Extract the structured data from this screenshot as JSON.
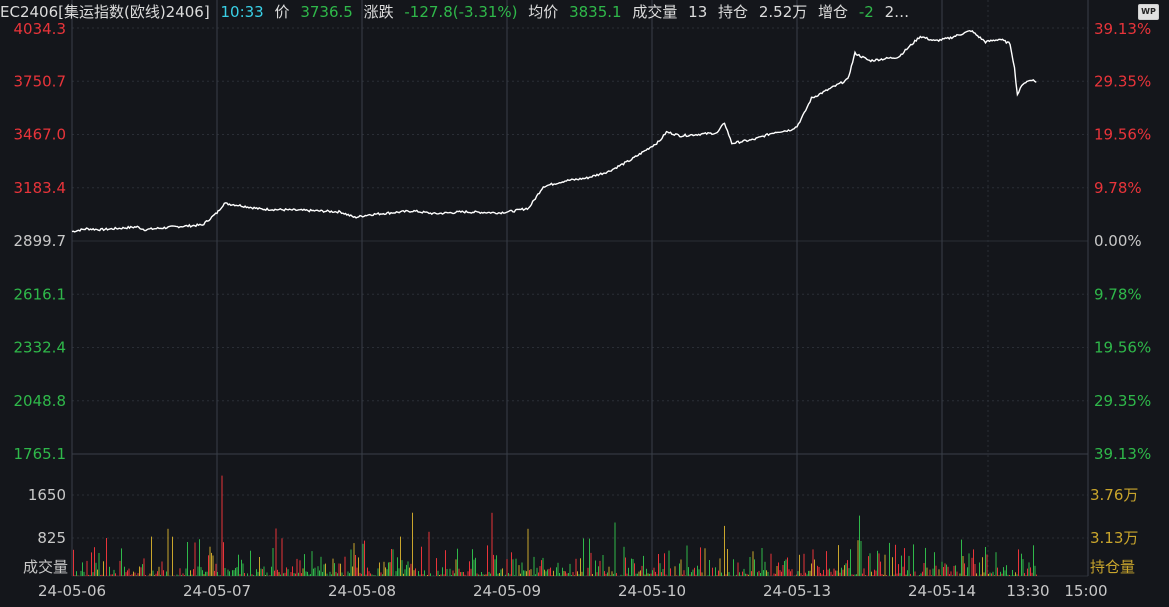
{
  "header": {
    "symbol": "EC2406[集运指数(欧线)2406]",
    "time": "10:33",
    "price_label": "价",
    "price_value": "3736.5",
    "change_label": "涨跌",
    "change_value": "-127.8(-3.31%)",
    "avg_label": "均价",
    "avg_value": "3835.1",
    "volume_label": "成交量",
    "volume_value": "13",
    "oi_label": "持仓",
    "oi_value": "2.52万",
    "oi_change_label": "增仓",
    "oi_change_value": "-2",
    "overflow_text": "2…",
    "wp_badge": "WP"
  },
  "colors": {
    "background": "#14161b",
    "grid": "#2a2e36",
    "price_line": "#ffffff",
    "up_red": "#e8343a",
    "down_green": "#2fb84a",
    "volume_yellow": "#c9a52c",
    "axis_text": "#c8c8c8"
  },
  "chart_data": [
    {
      "type": "line",
      "series": [
        {
          "values_described_as": "intraday price path"
        }
      ],
      "y_left_ticks": [
        "4034.3",
        "3750.7",
        "3467.0",
        "3183.4",
        "2899.7",
        "2616.1",
        "2332.4",
        "2048.8",
        "1765.1"
      ],
      "y_right_ticks": [
        "39.13%",
        "29.35%",
        "19.56%",
        "9.78%",
        "0.00%",
        "9.78%",
        "19.56%",
        "29.35%",
        "39.13%"
      ],
      "ylim": [
        1765.1,
        4034.3
      ],
      "reference_price": 2899.7,
      "x_ticks": [
        "24-05-06",
        "24-05-07",
        "24-05-08",
        "24-05-09",
        "24-05-10",
        "24-05-13",
        "24-05-14",
        "13:30",
        "15:00"
      ],
      "path": [
        [
          0,
          2950
        ],
        [
          0.1,
          2965
        ],
        [
          0.2,
          2960
        ],
        [
          0.45,
          2975
        ],
        [
          0.5,
          2960
        ],
        [
          0.7,
          2975
        ],
        [
          0.9,
          2985
        ],
        [
          1.0,
          3050
        ],
        [
          1.05,
          3100
        ],
        [
          1.15,
          3090
        ],
        [
          1.3,
          3070
        ],
        [
          1.5,
          3065
        ],
        [
          1.7,
          3060
        ],
        [
          1.85,
          3055
        ],
        [
          1.95,
          3025
        ],
        [
          2.05,
          3040
        ],
        [
          2.2,
          3050
        ],
        [
          2.35,
          3060
        ],
        [
          2.5,
          3045
        ],
        [
          2.7,
          3055
        ],
        [
          2.95,
          3050
        ],
        [
          3.05,
          3060
        ],
        [
          3.15,
          3075
        ],
        [
          3.25,
          3190
        ],
        [
          3.4,
          3220
        ],
        [
          3.55,
          3235
        ],
        [
          3.7,
          3270
        ],
        [
          3.85,
          3330
        ],
        [
          3.95,
          3380
        ],
        [
          4.05,
          3430
        ],
        [
          4.1,
          3480
        ],
        [
          4.2,
          3460
        ],
        [
          4.35,
          3470
        ],
        [
          4.45,
          3475
        ],
        [
          4.5,
          3530
        ],
        [
          4.55,
          3420
        ],
        [
          4.7,
          3440
        ],
        [
          4.85,
          3480
        ],
        [
          4.95,
          3490
        ],
        [
          5.0,
          3510
        ],
        [
          5.05,
          3580
        ],
        [
          5.1,
          3660
        ],
        [
          5.2,
          3700
        ],
        [
          5.35,
          3760
        ],
        [
          5.4,
          3900
        ],
        [
          5.5,
          3860
        ],
        [
          5.7,
          3880
        ],
        [
          5.85,
          3990
        ],
        [
          5.95,
          3965
        ],
        [
          6.05,
          3980
        ],
        [
          6.2,
          4020
        ],
        [
          6.3,
          3960
        ],
        [
          6.4,
          3975
        ],
        [
          6.47,
          3950
        ],
        [
          6.5,
          3820
        ],
        [
          6.52,
          3680
        ],
        [
          6.56,
          3740
        ],
        [
          6.62,
          3760
        ],
        [
          6.65,
          3745
        ]
      ]
    },
    {
      "type": "bar",
      "title": "成交量",
      "y_left_ticks": [
        "1650",
        "825"
      ],
      "y_right_ticks": [
        "3.76万",
        "3.13万"
      ],
      "legend_right": "持仓量",
      "series": [
        {
          "values_described_as": "per-minute volume (red/green/yellow)"
        }
      ]
    }
  ]
}
